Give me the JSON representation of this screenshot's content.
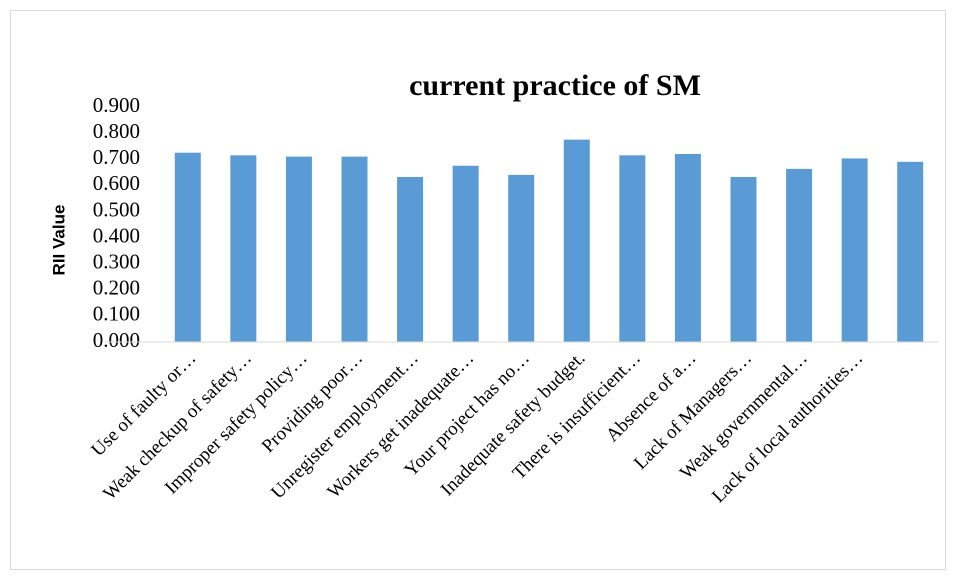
{
  "chart_data": {
    "type": "bar",
    "title": "current practice of SM",
    "y_label": "RII Value",
    "categories": [
      "Use of faulty or…",
      "Weak checkup of safety…",
      "Improper safety policy…",
      "Providing poor…",
      "Unregister employment…",
      "Workers get inadequate…",
      "Your project has no…",
      "Inadequate safety budget.",
      "There is insufficient…",
      "Absence of a…",
      "Lack of Managers…",
      "Weak governmental…",
      "Lack of local authorities…",
      null
    ],
    "values": [
      0.725,
      0.715,
      0.71,
      0.71,
      0.632,
      0.675,
      0.64,
      0.775,
      0.715,
      0.72,
      0.632,
      0.663,
      0.703,
      0.69
    ],
    "color": "#5b9bd5",
    "ylim": [
      0,
      0.9
    ],
    "yticks": [
      {
        "value": 0,
        "label": "0.000"
      },
      {
        "value": 0.1,
        "label": "0.100"
      },
      {
        "value": 0.2,
        "label": "0.200"
      },
      {
        "value": 0.3,
        "label": "0.300"
      },
      {
        "value": 0.4,
        "label": "0.400"
      },
      {
        "value": 0.5,
        "label": "0.500"
      },
      {
        "value": 0.6,
        "label": "0.600"
      },
      {
        "value": 0.7,
        "label": "0.700"
      },
      {
        "value": 0.8,
        "label": "0.800"
      },
      {
        "value": 0.9,
        "label": "0.900"
      }
    ],
    "grid": false
  }
}
